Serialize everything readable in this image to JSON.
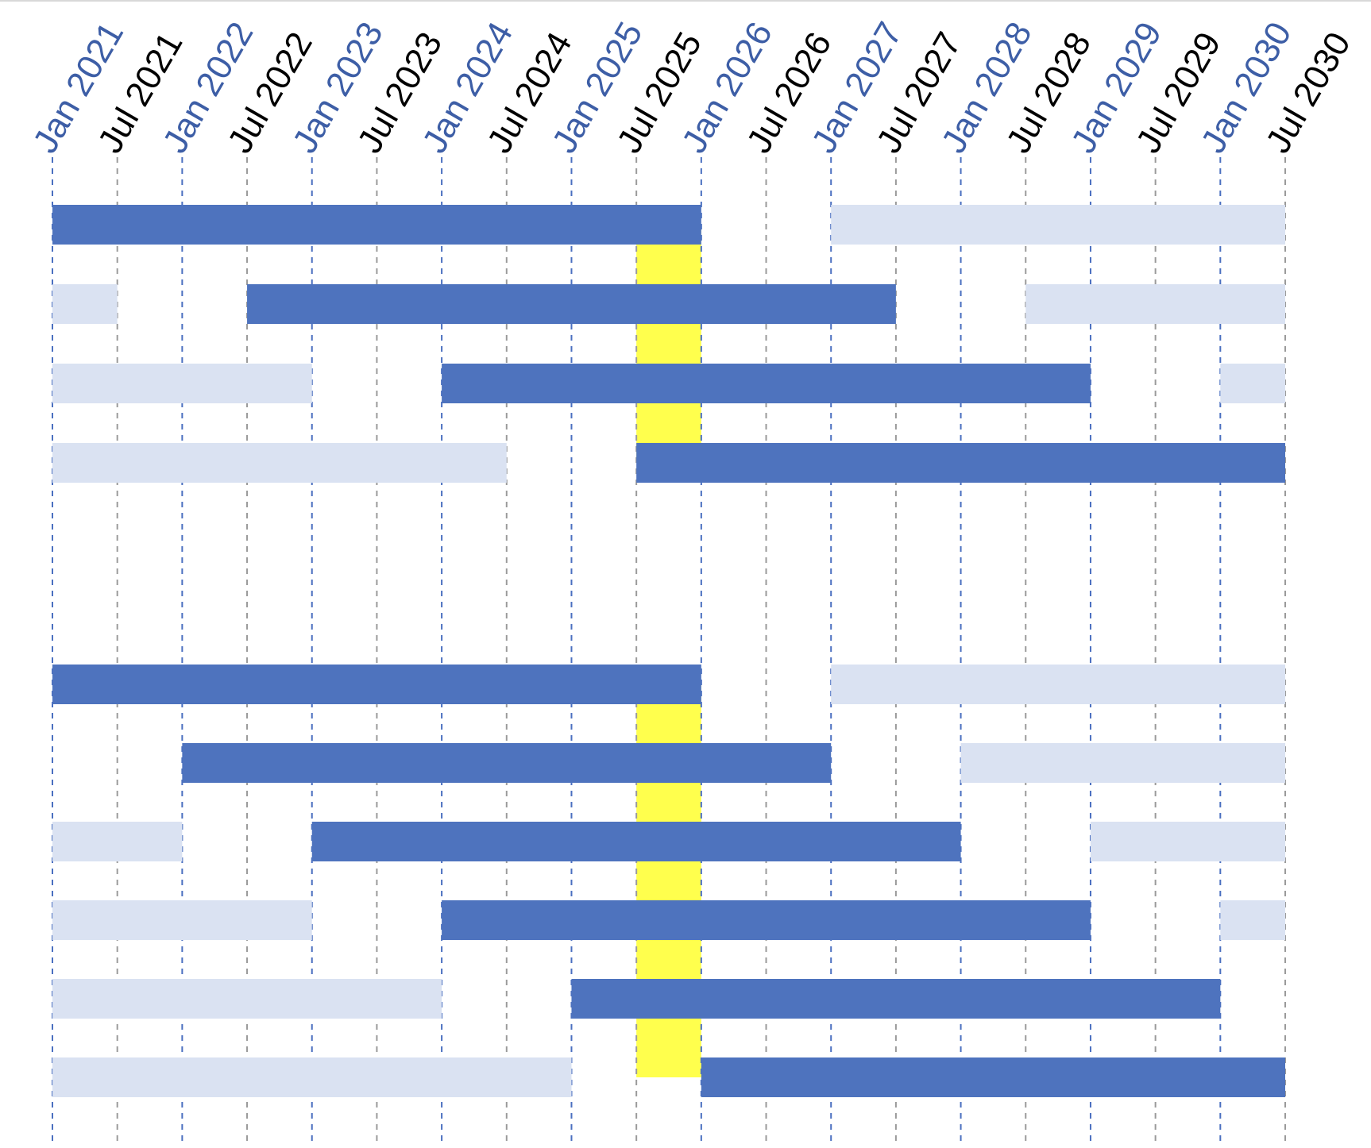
{
  "chart_data": {
    "type": "bar",
    "subtype": "gantt-timeline",
    "title": "",
    "xlabel": "",
    "ylabel": "",
    "x_axis": {
      "position": "top",
      "tick_labels": [
        "Jan 2021",
        "Jul 2021",
        "Jan 2022",
        "Jul 2022",
        "Jan 2023",
        "Jul 2023",
        "Jan 2024",
        "Jul 2024",
        "Jan 2025",
        "Jul 2025",
        "Jan 2026",
        "Jul 2026",
        "Jan 2027",
        "Jul 2027",
        "Jan 2028",
        "Jul 2028",
        "Jan 2029",
        "Jul 2029",
        "Jan 2030",
        "Jul 2030"
      ],
      "range": [
        "2021-01",
        "2030-07"
      ],
      "label_rotation": "-60deg",
      "grid": "dashed vertical lines at each tick"
    },
    "highlight": {
      "start": "2025-07",
      "end": "2026-01",
      "label": ""
    },
    "groups": [
      {
        "rows": [
          {
            "active": [
              [
                "2021-01",
                "2026-01"
              ]
            ],
            "inactive": [
              [
                "2027-01",
                "2030-07"
              ]
            ]
          },
          {
            "active": [
              [
                "2022-07",
                "2027-07"
              ]
            ],
            "inactive": [
              [
                "2021-01",
                "2021-07"
              ],
              [
                "2028-07",
                "2030-07"
              ]
            ]
          },
          {
            "active": [
              [
                "2024-01",
                "2029-01"
              ]
            ],
            "inactive": [
              [
                "2021-01",
                "2023-01"
              ],
              [
                "2030-01",
                "2030-07"
              ]
            ]
          },
          {
            "active": [
              [
                "2025-07",
                "2030-07"
              ]
            ],
            "inactive": [
              [
                "2021-01",
                "2024-07"
              ]
            ]
          }
        ]
      },
      {
        "rows": [
          {
            "active": [
              [
                "2021-01",
                "2026-01"
              ]
            ],
            "inactive": [
              [
                "2027-01",
                "2030-07"
              ]
            ]
          },
          {
            "active": [
              [
                "2022-01",
                "2027-01"
              ]
            ],
            "inactive": [
              [
                "2028-01",
                "2030-07"
              ]
            ]
          },
          {
            "active": [
              [
                "2023-01",
                "2028-01"
              ]
            ],
            "inactive": [
              [
                "2021-01",
                "2022-01"
              ],
              [
                "2029-01",
                "2030-07"
              ]
            ]
          },
          {
            "active": [
              [
                "2024-01",
                "2029-01"
              ]
            ],
            "inactive": [
              [
                "2021-01",
                "2023-01"
              ],
              [
                "2030-01",
                "2030-07"
              ]
            ]
          },
          {
            "active": [
              [
                "2025-01",
                "2030-01"
              ]
            ],
            "inactive": [
              [
                "2021-01",
                "2024-01"
              ]
            ]
          },
          {
            "active": [
              [
                "2026-01",
                "2030-07"
              ]
            ],
            "inactive": [
              [
                "2021-01",
                "2025-01"
              ]
            ]
          }
        ]
      }
    ],
    "colors": {
      "active_bar": "#4E73BE",
      "inactive_bar": "#DAE2F2",
      "highlight": "#FFFF4D",
      "jan_label": "#3D5EA6",
      "jul_label": "#000000",
      "jan_gridline": "#4A6FC0",
      "jul_gridline": "#9A9A9A"
    },
    "legend": "none"
  }
}
